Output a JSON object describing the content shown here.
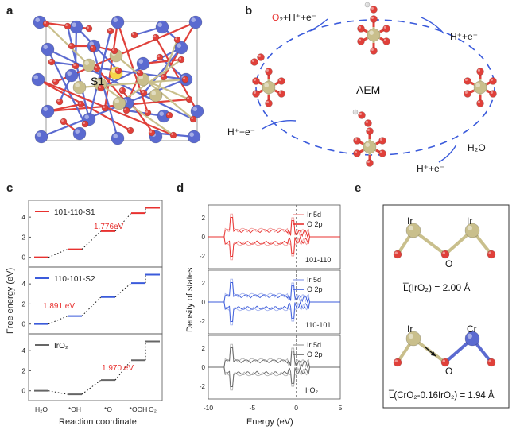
{
  "panel_labels": {
    "a": "a",
    "b": "b",
    "c": "c",
    "d": "d",
    "e": "e"
  },
  "panel_a": {
    "site_label": "S1"
  },
  "panel_b": {
    "center_label": "AEM",
    "step_1": "O₂+H⁺+e⁻",
    "step_2": "H⁺+e⁻",
    "step_3": "H⁺+e⁻",
    "step_4": "H₂O",
    "step_5": "H⁺+e⁻"
  },
  "panel_c": {
    "ylabel": "Free energy (eV)",
    "xlabel": "Reaction coordinate",
    "y_ticks": [
      "0",
      "2",
      "4"
    ],
    "x_ticks": [
      "H₂O",
      "*OH",
      "*O",
      "*OOH",
      "O₂"
    ]
  },
  "panel_d": {
    "ylabel": "Density of states",
    "xlabel": "Energy (eV)",
    "x_ticks": [
      "-10",
      "-5",
      "0",
      "5"
    ],
    "y_ticks": [
      "2",
      "0",
      "-2"
    ],
    "legend_ir": "Ir 5d",
    "legend_o": "O 2p"
  },
  "panel_e": {
    "top_atom_left": "Ir",
    "top_atom_right": "Ir",
    "top_o": "O",
    "top_formula": "L̅(IrO₂) = 2.00 Å",
    "bot_atom_left": "Ir",
    "bot_atom_right": "Cr",
    "bot_o": "O",
    "bot_formula": "L̅(CrO₂-0.16IrO₂) = 1.94 Å"
  },
  "chart_data": [
    {
      "type": "line",
      "xlabel": "Reaction coordinate",
      "ylabel": "Free energy (eV)",
      "categories": [
        "H₂O",
        "*OH",
        "*O",
        "*OOH",
        "O₂"
      ],
      "ylim": [
        -0.5,
        5.2
      ],
      "series": [
        {
          "name": "101-110-S1",
          "color": "#e8312f",
          "values": [
            0,
            0.8,
            2.6,
            4.4,
            4.92
          ],
          "annotation": "1.776eV"
        },
        {
          "name": "110-101-S2",
          "color": "#3b5bdb",
          "values": [
            0,
            0.8,
            2.69,
            4.08,
            4.92
          ],
          "annotation": "1.891 eV"
        },
        {
          "name": "IrO₂",
          "color": "#666666",
          "values": [
            0,
            -0.35,
            1.07,
            3.04,
            4.92
          ],
          "annotation": "1.970 eV"
        }
      ]
    },
    {
      "type": "line",
      "xlabel": "Energy (eV)",
      "ylabel": "Density of states",
      "xlim": [
        -10,
        5
      ],
      "ylim": [
        -3,
        3
      ],
      "series": [
        {
          "name": "101-110",
          "color": "#e8312f"
        },
        {
          "name": "110-101",
          "color": "#3b5bdb"
        },
        {
          "name": "IrO₂",
          "color": "#666666"
        }
      ]
    }
  ]
}
